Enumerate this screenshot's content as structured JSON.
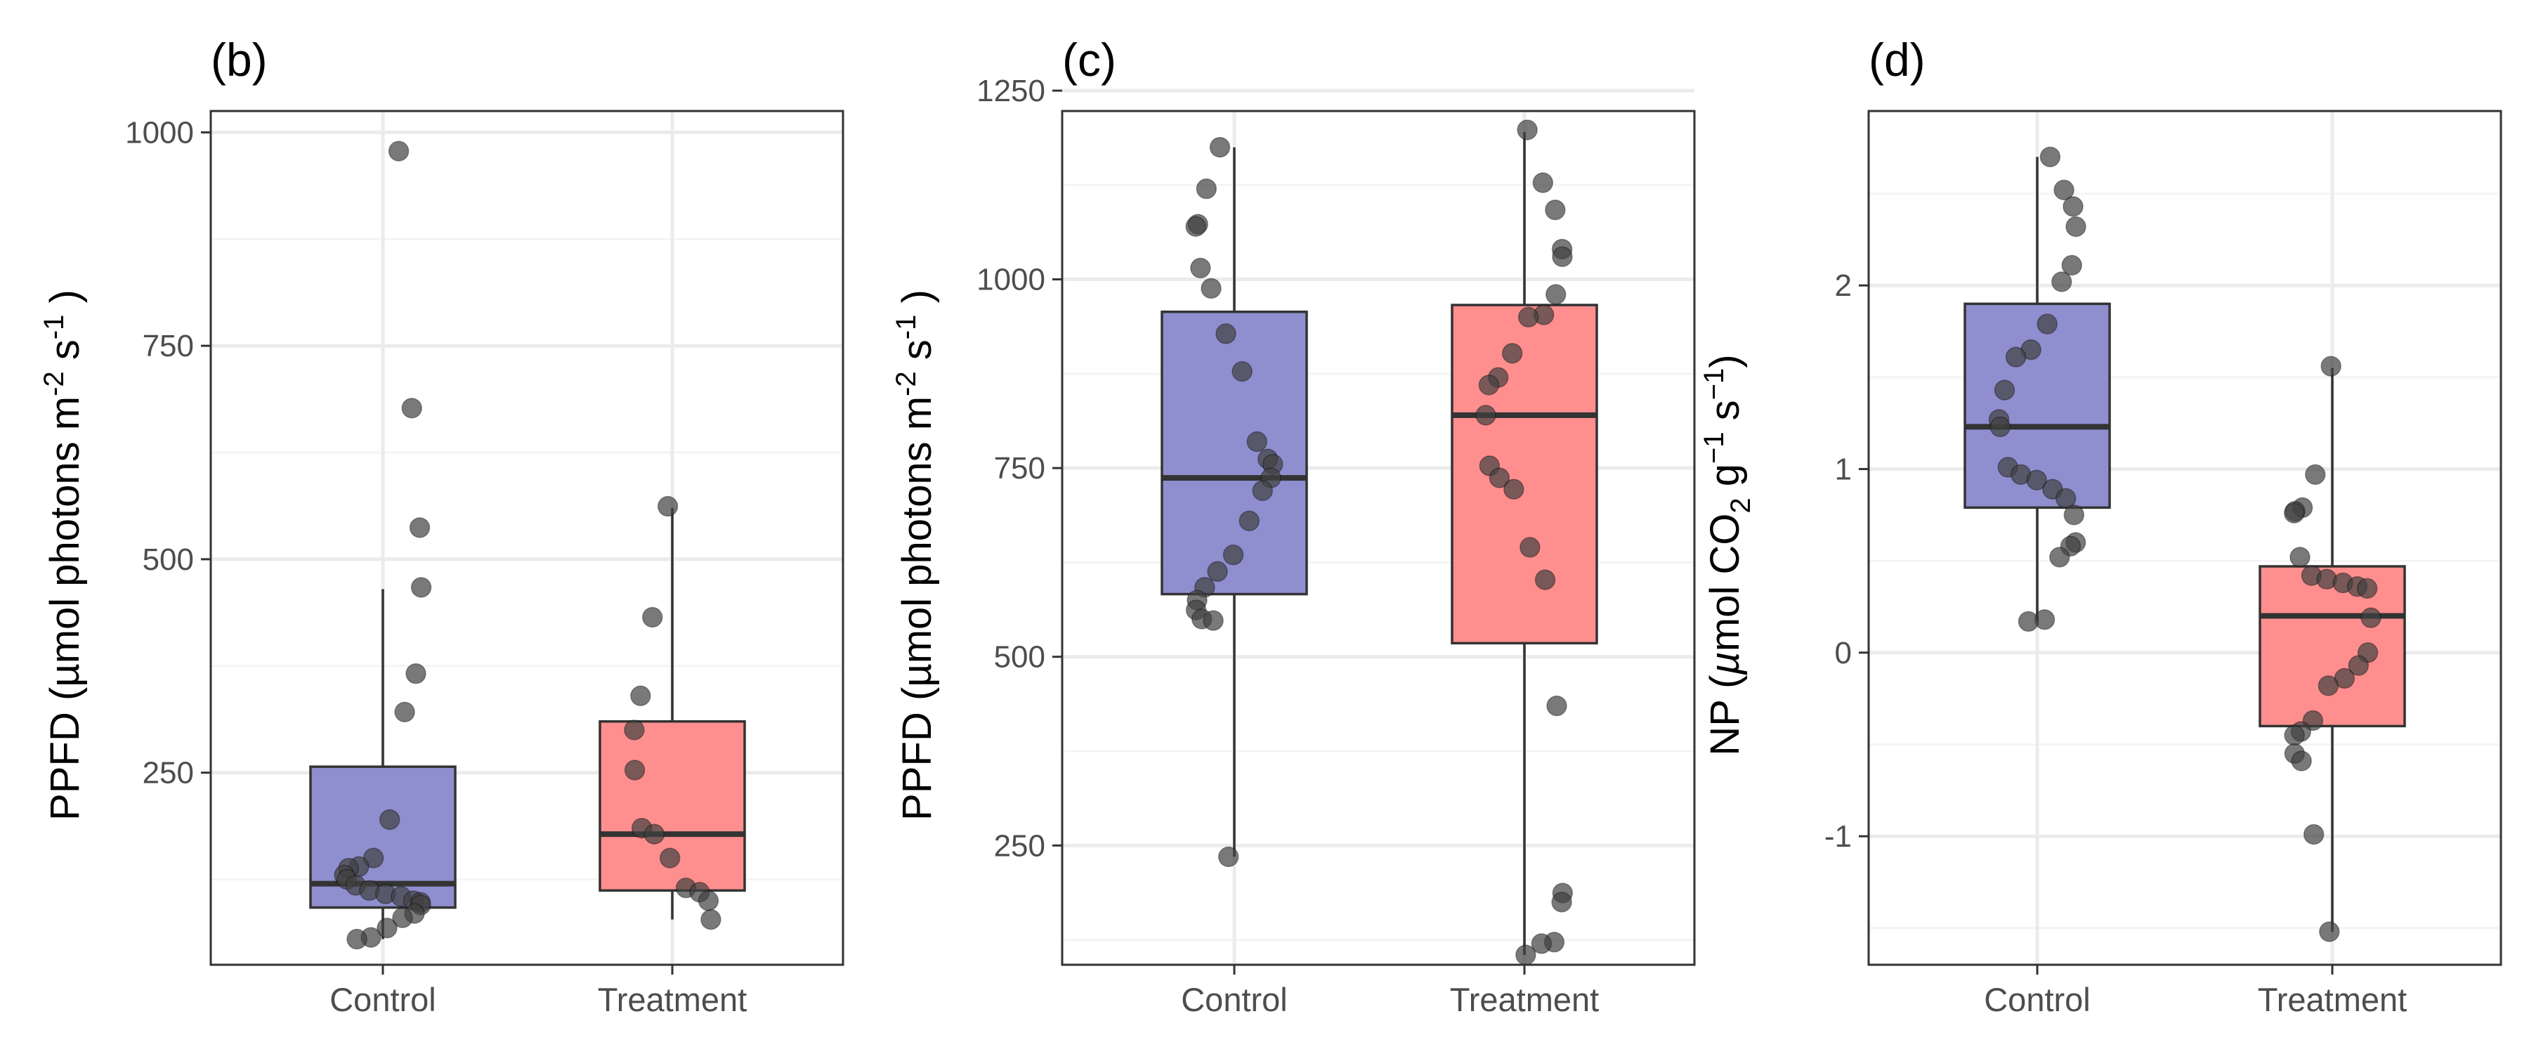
{
  "colors": {
    "control_fill": "#8f8fcf",
    "treatment_fill": "#ff8f8f",
    "point": "#404040",
    "grid_major": "#ebebeb",
    "grid_minor": "#f4f4f4",
    "frame": "#333333"
  },
  "panels": [
    {
      "tag": "(b)",
      "ylabel_main": "PPFD (µmol photons m",
      "ylabel_sup1": "-2",
      "ylabel_mid": " s",
      "ylabel_sup2": "-1",
      "ylabel_end": " )"
    },
    {
      "tag": "(c)",
      "ylabel_main": "PPFD (µmol photons m",
      "ylabel_sup1": "-2",
      "ylabel_mid": " s",
      "ylabel_sup2": "-1",
      "ylabel_end": " )"
    },
    {
      "tag": "(d)",
      "ylabel_parts": [
        "NP (",
        "µ",
        "mol CO",
        "2",
        " g",
        "−1",
        " s",
        "−1",
        ")"
      ]
    }
  ],
  "chart_data": [
    {
      "type": "box",
      "title": "(b)",
      "ylabel": "PPFD (µmol photons m-2 s-1 )",
      "categories": [
        "Control",
        "Treatment"
      ],
      "ylim": [
        25,
        1025
      ],
      "yticks": [
        250,
        500,
        750,
        1000
      ],
      "grid": true,
      "boxes": [
        {
          "name": "Control",
          "lower_whisker": 55,
          "q1": 92,
          "median": 120,
          "q3": 257,
          "upper_whisker": 465
        },
        {
          "name": "Treatment",
          "lower_whisker": 78,
          "q1": 112,
          "median": 178,
          "q3": 310,
          "upper_whisker": 560
        }
      ],
      "points": [
        {
          "category": "Control",
          "values": [
            978,
            677,
            537,
            467,
            366,
            321,
            195,
            150,
            140,
            138,
            130,
            125,
            118,
            112,
            108,
            105,
            100,
            98,
            95,
            85,
            80,
            68,
            57,
            55
          ]
        },
        {
          "category": "Treatment",
          "values": [
            562,
            432,
            340,
            300,
            253,
            185,
            178,
            150,
            115,
            110,
            100,
            78
          ]
        }
      ]
    },
    {
      "type": "box",
      "title": "(c)",
      "ylabel": "PPFD (µmol photons m-2 s-1 )",
      "categories": [
        "Control",
        "Treatment"
      ],
      "ylim": [
        92,
        1223
      ],
      "yticks": [
        250,
        500,
        750,
        1000,
        1250
      ],
      "grid": true,
      "boxes": [
        {
          "name": "Control",
          "lower_whisker": 235,
          "q1": 583,
          "median": 737,
          "q3": 957,
          "upper_whisker": 1175
        },
        {
          "name": "Treatment",
          "lower_whisker": 105,
          "q1": 518,
          "median": 820,
          "q3": 966,
          "upper_whisker": 1195
        }
      ],
      "points": [
        {
          "category": "Control",
          "values": [
            1175,
            1120,
            1073,
            1070,
            1015,
            988,
            928,
            878,
            785,
            762,
            755,
            737,
            720,
            680,
            635,
            613,
            592,
            575,
            562,
            550,
            548,
            235
          ]
        },
        {
          "category": "Treatment",
          "values": [
            1198,
            1128,
            1092,
            1040,
            1030,
            980,
            953,
            950,
            902,
            870,
            860,
            820,
            753,
            737,
            722,
            645,
            602,
            435,
            187,
            175,
            122,
            120,
            105
          ]
        }
      ]
    },
    {
      "type": "box",
      "title": "(d)",
      "ylabel": "NP (µmol CO2 g−1 s−1)",
      "categories": [
        "Control",
        "Treatment"
      ],
      "ylim": [
        -1.7,
        2.95
      ],
      "yticks": [
        -1,
        0,
        1,
        2
      ],
      "grid": true,
      "boxes": [
        {
          "name": "Control",
          "lower_whisker": 0.17,
          "q1": 0.79,
          "median": 1.23,
          "q3": 1.9,
          "upper_whisker": 2.7
        },
        {
          "name": "Treatment",
          "lower_whisker": -1.52,
          "q1": -0.4,
          "median": 0.2,
          "q3": 0.47,
          "upper_whisker": 1.55
        }
      ],
      "points": [
        {
          "category": "Control",
          "values": [
            2.7,
            2.52,
            2.43,
            2.32,
            2.11,
            2.02,
            1.79,
            1.65,
            1.61,
            1.43,
            1.27,
            1.23,
            1.01,
            0.97,
            0.94,
            0.89,
            0.84,
            0.75,
            0.6,
            0.58,
            0.52,
            0.18,
            0.17
          ]
        },
        {
          "category": "Treatment",
          "values": [
            1.56,
            0.97,
            0.79,
            0.77,
            0.76,
            0.52,
            0.42,
            0.4,
            0.38,
            0.36,
            0.35,
            0.19,
            0.0,
            -0.07,
            -0.14,
            -0.18,
            -0.37,
            -0.43,
            -0.45,
            -0.55,
            -0.59,
            -0.99,
            -1.52
          ]
        }
      ]
    }
  ]
}
